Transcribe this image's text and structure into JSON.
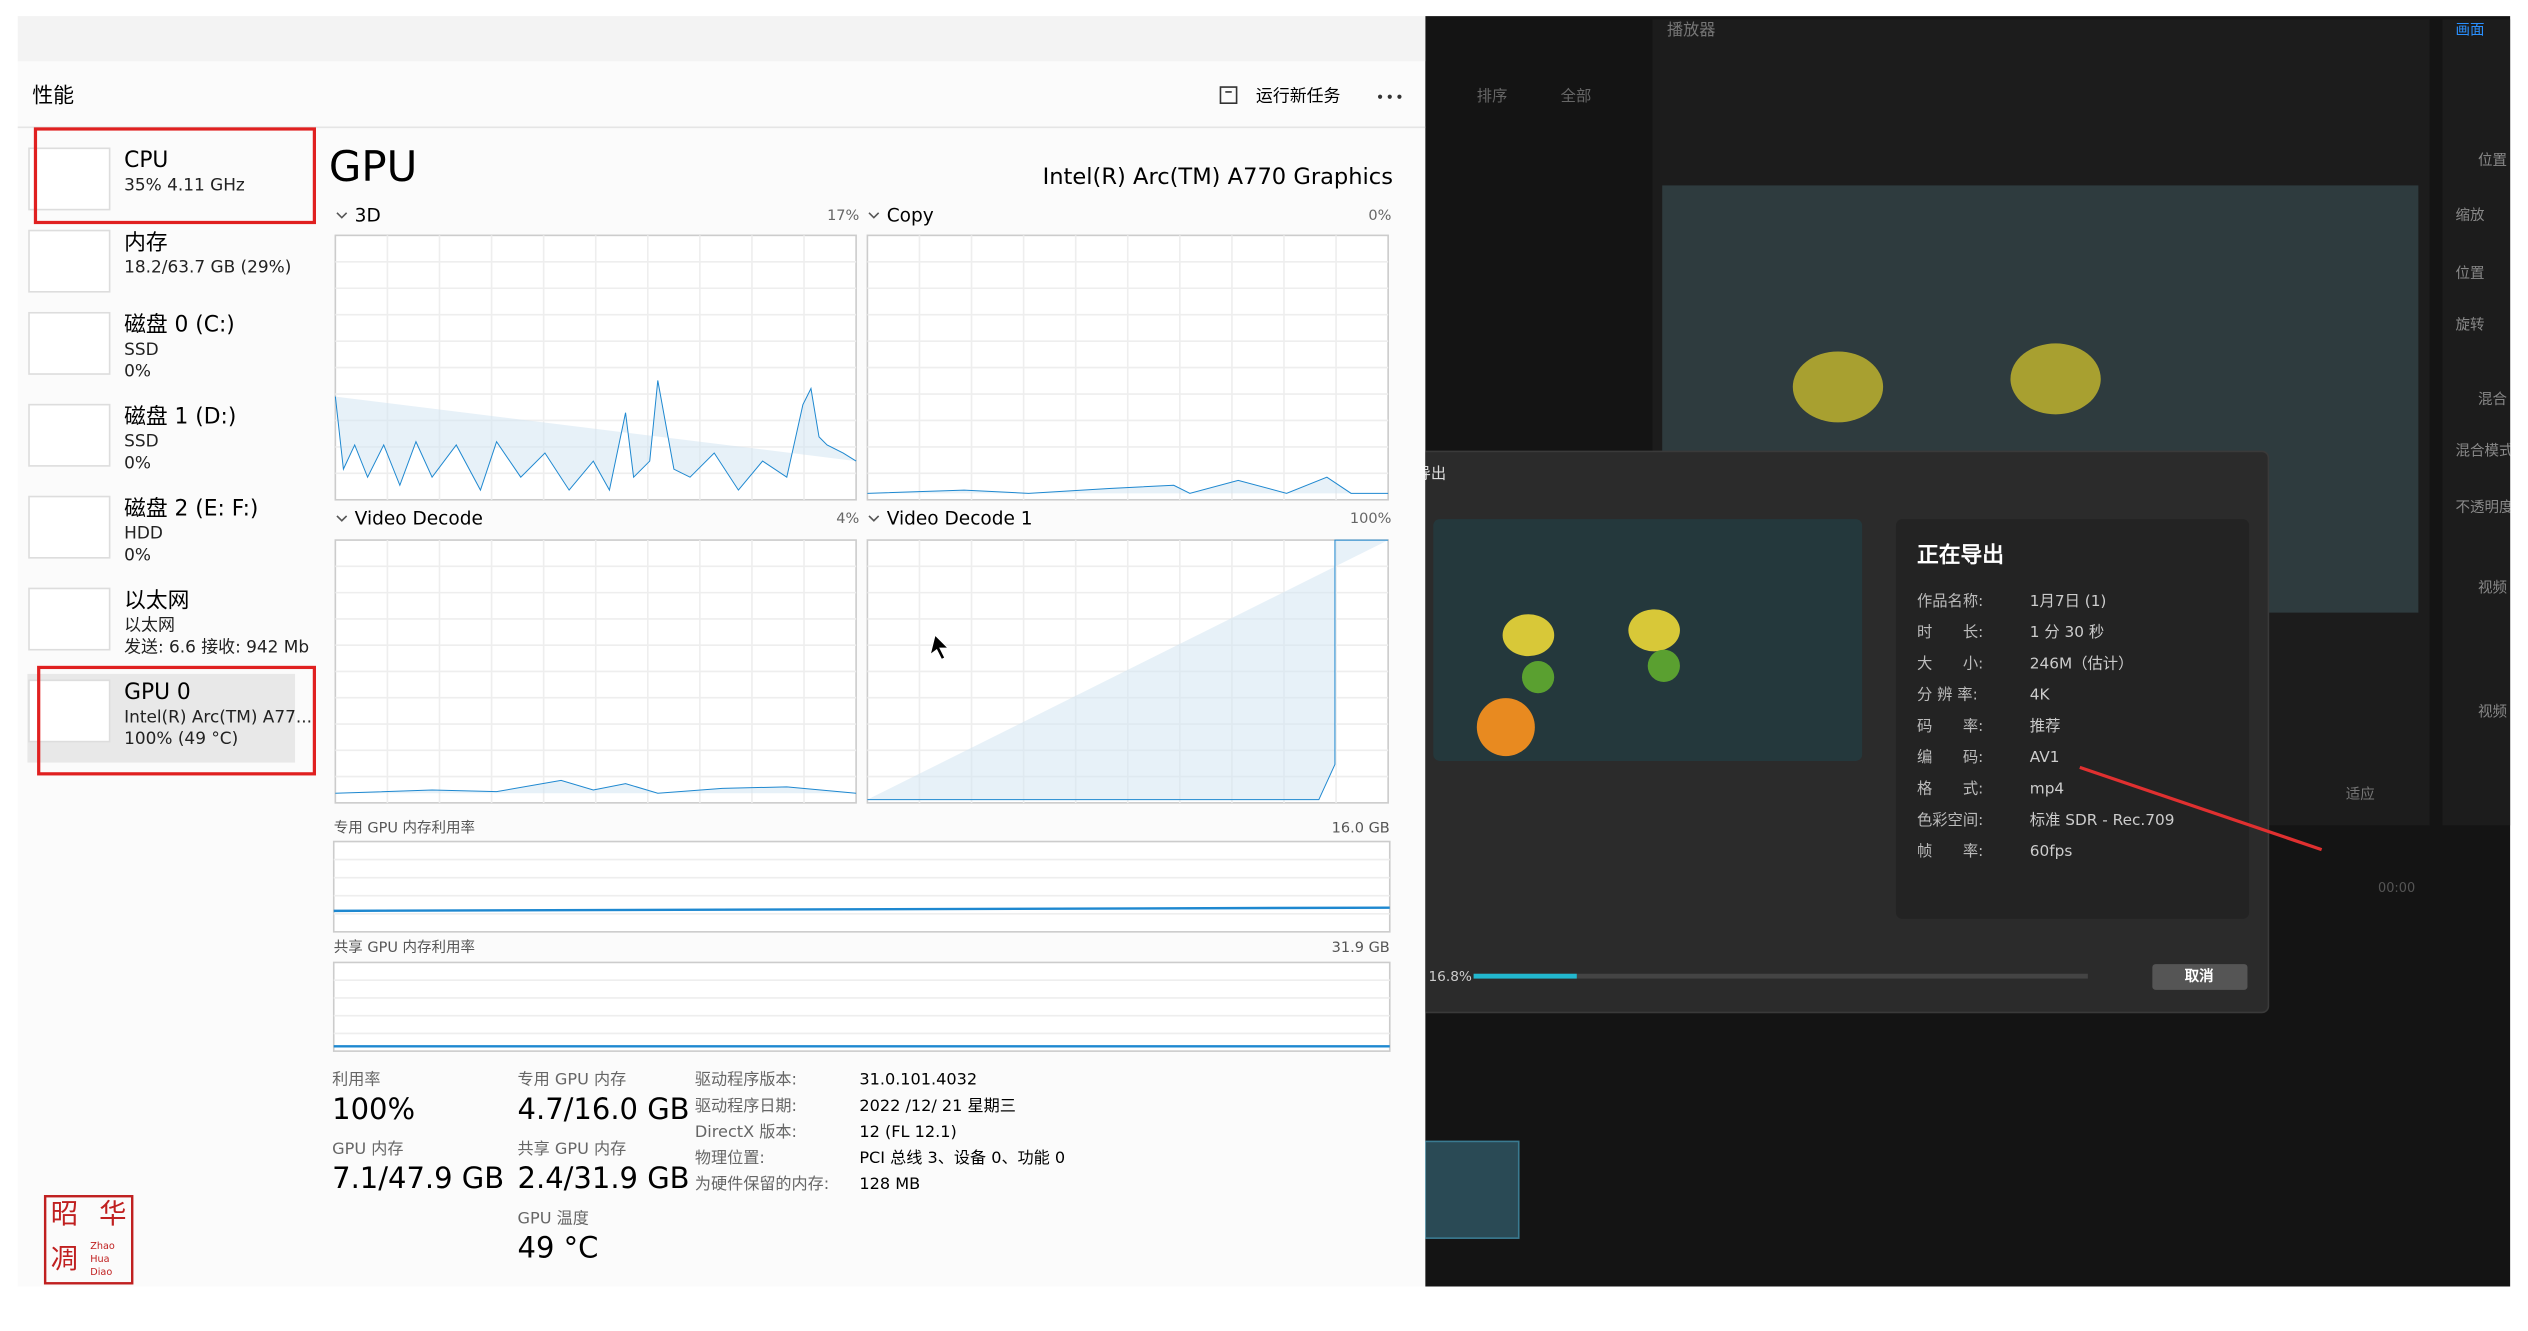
{
  "task_manager": {
    "header": {
      "title": "性能",
      "run_task": "运行新任务"
    },
    "sidebar": [
      {
        "name": "CPU",
        "detail": [
          "35% 4.11 GHz"
        ]
      },
      {
        "name": "内存",
        "detail": [
          "18.2/63.7 GB (29%)"
        ]
      },
      {
        "name": "磁盘 0 (C:)",
        "detail": [
          "SSD",
          "0%"
        ]
      },
      {
        "name": "磁盘 1 (D:)",
        "detail": [
          "SSD",
          "0%"
        ]
      },
      {
        "name": "磁盘 2 (E: F:)",
        "detail": [
          "HDD",
          "0%"
        ]
      },
      {
        "name": "以太网",
        "detail": [
          "以太网",
          "发送: 6.6 接收: 942 Mb"
        ]
      },
      {
        "name": "GPU 0",
        "detail": [
          "Intel(R) Arc(TM) A77...",
          "100% (49 °C)"
        ]
      }
    ],
    "gpu": {
      "title": "GPU",
      "model": "Intel(R) Arc(TM) A770 Graphics",
      "engines": [
        {
          "name": "3D",
          "value": "17%"
        },
        {
          "name": "Copy",
          "value": "0%"
        },
        {
          "name": "Video Decode",
          "value": "4%"
        },
        {
          "name": "Video Decode 1",
          "value": "100%"
        }
      ],
      "dedicated": {
        "label": "专用 GPU 内存利用率",
        "max": "16.0 GB"
      },
      "shared": {
        "label": "共享 GPU 内存利用率",
        "max": "31.9 GB"
      },
      "stats": [
        {
          "label": "利用率",
          "value": "100%"
        },
        {
          "label": "GPU 内存",
          "value": "7.1/47.9 GB"
        },
        {
          "label": "专用 GPU 内存",
          "value": "4.7/16.0 GB"
        },
        {
          "label": "共享 GPU 内存",
          "value": "2.4/31.9 GB"
        },
        {
          "label": "GPU 温度",
          "value": "49 °C"
        }
      ],
      "details": [
        {
          "label": "驱动程序版本:",
          "value": "31.0.101.4032"
        },
        {
          "label": "驱动程序日期:",
          "value": "2022 /12/ 21 星期三"
        },
        {
          "label": "DirectX 版本:",
          "value": "12 (FL 12.1)"
        },
        {
          "label": "物理位置:",
          "value": "PCI 总线 3、设备 0、功能 0"
        },
        {
          "label": "为硬件保留的内存:",
          "value": "128 MB"
        }
      ]
    }
  },
  "editor": {
    "player": "播放器",
    "toolbar": [
      "排序",
      "全部"
    ],
    "fit": "适应",
    "timecode": "00:00",
    "export": {
      "title": "导出",
      "heading": "正在导出",
      "fields": [
        {
          "label": "作品名称:",
          "value": "1月7日 (1)"
        },
        {
          "label": "时　　长:",
          "value": "1 分 30 秒"
        },
        {
          "label": "大　　小:",
          "value": "246M（估计）"
        },
        {
          "label": "分 辨 率:",
          "value": "4K"
        },
        {
          "label": "码　　率:",
          "value": "推荐"
        },
        {
          "label": "编　　码:",
          "value": "AV1"
        },
        {
          "label": "格　　式:",
          "value": "mp4"
        },
        {
          "label": "色彩空间:",
          "value": "标准 SDR - Rec.709"
        },
        {
          "label": "帧　　率:",
          "value": "60fps"
        }
      ],
      "progress": "16.8%",
      "cancel": "取消"
    },
    "right_panel": [
      "画面",
      "位置",
      "缩放",
      "位置",
      "旋转",
      "混合",
      "混合模式",
      "不透明度",
      "视频",
      "视频"
    ]
  },
  "watermark": {
    "chars": [
      "昭",
      "华",
      "凋"
    ],
    "latin": [
      "Zhao",
      "Hua",
      "Diao"
    ]
  }
}
